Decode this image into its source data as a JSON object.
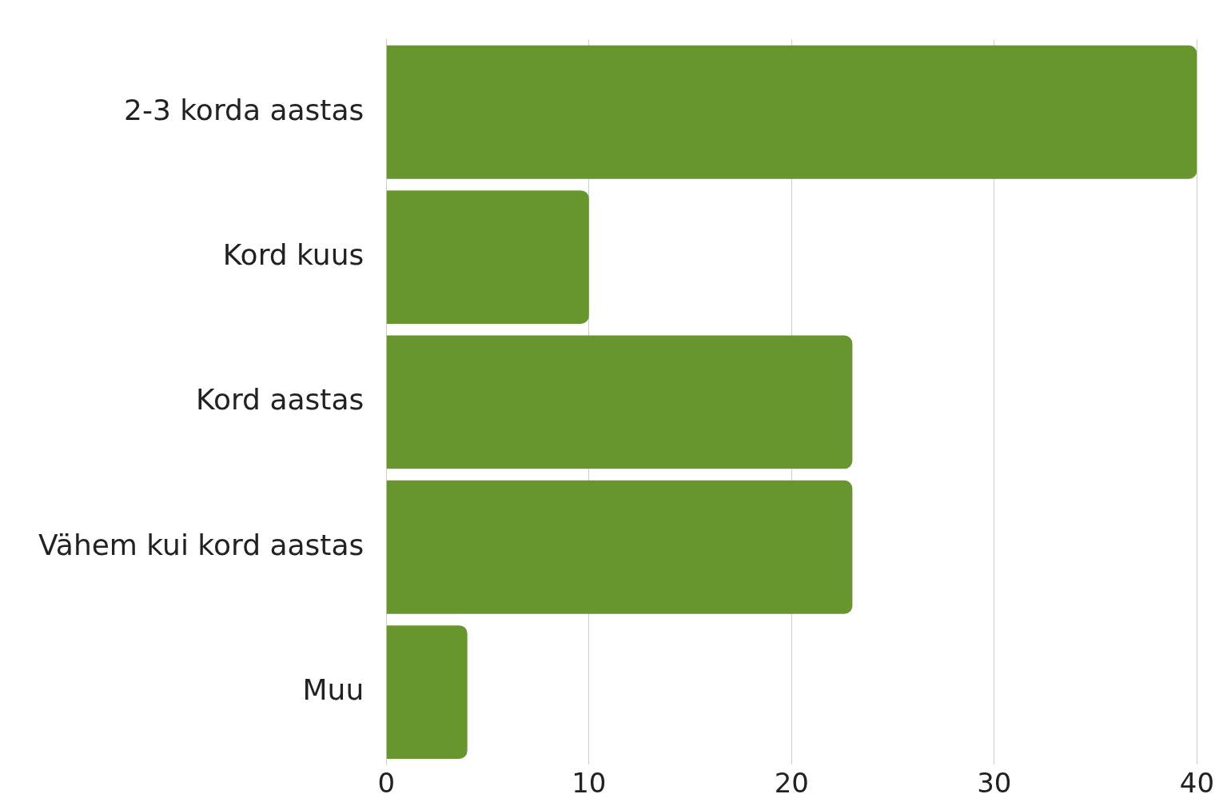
{
  "chart_data": {
    "type": "bar",
    "orientation": "horizontal",
    "categories": [
      "2-3 korda aastas",
      "Kord kuus",
      "Kord aastas",
      "Vähem kui kord aastas",
      "Muu"
    ],
    "values": [
      40,
      10,
      23,
      23,
      4
    ],
    "color": "#67952e",
    "xlim": [
      0,
      40
    ],
    "xticks": [
      0,
      10,
      20,
      30,
      40
    ],
    "grid": "x",
    "legend": false
  }
}
